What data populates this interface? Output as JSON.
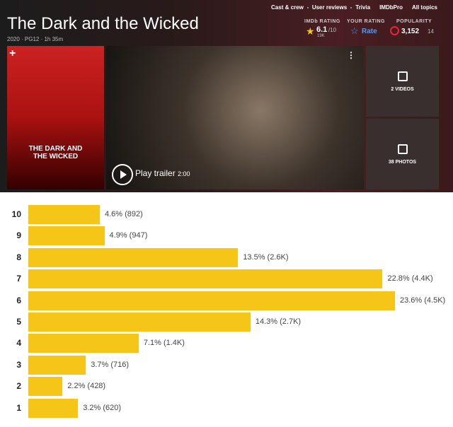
{
  "nav": {
    "links": [
      "Cast & crew",
      "User reviews",
      "Trivia",
      "IMDbPro",
      "All topics"
    ]
  },
  "header": {
    "title": "The Dark and the Wicked",
    "subtitle": "2020 · PG12 · 1h 35m"
  },
  "ratings": {
    "imdb_label": "IMDb RATING",
    "imdb_score": "6.1",
    "imdb_max": "/10",
    "imdb_votes": "19K",
    "your_label": "YOUR RATING",
    "your_action": "Rate",
    "popularity_label": "POPULARITY",
    "popularity": "3,152",
    "popularity_change": "14"
  },
  "media": {
    "poster_title": "THE DARK AND THE WICKED",
    "trailer": "Play trailer",
    "trailer_length": "2:00",
    "videos": "2 VIDEOS",
    "photos": "38 PHOTOS"
  },
  "chart_data": {
    "type": "bar",
    "orientation": "horizontal",
    "categories": [
      "10",
      "9",
      "8",
      "7",
      "6",
      "5",
      "4",
      "3",
      "2",
      "1"
    ],
    "values": [
      4.6,
      4.9,
      13.5,
      22.8,
      23.6,
      14.3,
      7.1,
      3.7,
      2.2,
      3.2
    ],
    "value_labels": [
      "4.6% (892)",
      "4.9% (947)",
      "13.5% (2.6K)",
      "22.8% (4.4K)",
      "23.6% (4.5K)",
      "14.3% (2.7K)",
      "7.1% (1.4K)",
      "3.7% (716)",
      "2.2% (428)",
      "3.2% (620)"
    ],
    "color": "#f5c518"
  }
}
